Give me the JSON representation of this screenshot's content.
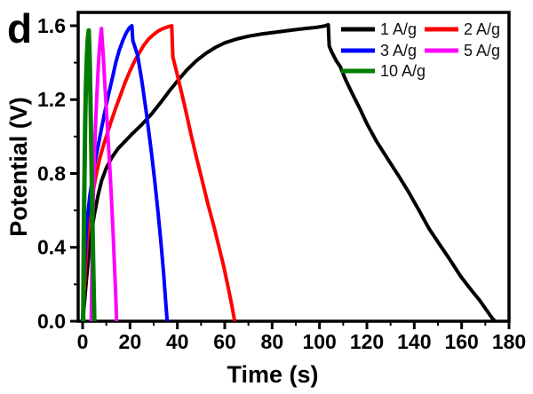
{
  "panel_label": "d",
  "chart_data": {
    "type": "line",
    "title": "",
    "xlabel": "Time (s)",
    "ylabel": "Potential (V)",
    "xlim": [
      -1.875,
      180
    ],
    "ylim": [
      0,
      1.672
    ],
    "grid": false,
    "legend_position": "top-right-inside",
    "x_major_ticks": [
      0,
      20,
      40,
      60,
      80,
      100,
      120,
      140,
      160,
      180
    ],
    "x_major_tick_labels": [
      "0",
      "20",
      "40",
      "60",
      "80",
      "100",
      "120",
      "140",
      "160",
      "180"
    ],
    "x_minor_ticks": [
      10,
      30,
      50,
      70,
      90,
      110,
      130,
      150,
      170
    ],
    "y_major_ticks": [
      0.0,
      0.4,
      0.8,
      1.2,
      1.6
    ],
    "y_major_tick_labels": [
      "0.0",
      "0.4",
      "0.8",
      "1.2",
      "1.6"
    ],
    "y_minor_ticks": [
      0.2,
      0.6,
      1.0,
      1.4
    ],
    "axis_color": "#000000",
    "series": [
      {
        "name": "1 A/g",
        "color": "#000000",
        "points": [
          [
            0,
            0
          ],
          [
            0.7,
            0.09
          ],
          [
            1.5,
            0.21
          ],
          [
            2.5,
            0.35
          ],
          [
            3.5,
            0.46
          ],
          [
            5,
            0.58
          ],
          [
            6.5,
            0.68
          ],
          [
            8,
            0.76
          ],
          [
            10,
            0.83
          ],
          [
            12.5,
            0.89
          ],
          [
            15,
            0.935
          ],
          [
            17.6,
            0.97
          ],
          [
            21,
            1.015
          ],
          [
            25,
            1.065
          ],
          [
            29,
            1.12
          ],
          [
            33,
            1.185
          ],
          [
            36.5,
            1.245
          ],
          [
            40,
            1.3
          ],
          [
            44,
            1.36
          ],
          [
            48,
            1.41
          ],
          [
            52,
            1.45
          ],
          [
            56,
            1.482
          ],
          [
            60,
            1.507
          ],
          [
            65,
            1.528
          ],
          [
            70,
            1.543
          ],
          [
            76,
            1.556
          ],
          [
            82,
            1.566
          ],
          [
            88,
            1.576
          ],
          [
            94,
            1.585
          ],
          [
            99,
            1.592
          ],
          [
            102,
            1.598
          ],
          [
            103.7,
            1.605
          ],
          [
            104.1,
            1.49
          ],
          [
            105,
            1.462
          ],
          [
            107,
            1.412
          ],
          [
            108.8,
            1.378
          ],
          [
            111,
            1.308
          ],
          [
            114,
            1.228
          ],
          [
            117,
            1.152
          ],
          [
            120,
            1.07
          ],
          [
            124,
            0.975
          ],
          [
            129,
            0.875
          ],
          [
            133.5,
            0.785
          ],
          [
            137.6,
            0.7
          ],
          [
            142,
            0.6
          ],
          [
            146.3,
            0.5
          ],
          [
            151,
            0.41
          ],
          [
            155.2,
            0.33
          ],
          [
            159.5,
            0.245
          ],
          [
            164,
            0.17
          ],
          [
            167.5,
            0.115
          ],
          [
            170.5,
            0.06
          ],
          [
            173,
            0.015
          ],
          [
            174.2,
            0
          ]
        ]
      },
      {
        "name": "2 A/g",
        "color": "#ff0000",
        "points": [
          [
            0,
            0
          ],
          [
            0.5,
            0.12
          ],
          [
            1.2,
            0.29
          ],
          [
            2,
            0.44
          ],
          [
            3,
            0.57
          ],
          [
            4,
            0.67
          ],
          [
            5.5,
            0.78
          ],
          [
            7,
            0.87
          ],
          [
            8.5,
            0.94
          ],
          [
            10,
            1.0
          ],
          [
            12,
            1.08
          ],
          [
            14,
            1.155
          ],
          [
            16,
            1.225
          ],
          [
            18,
            1.295
          ],
          [
            20,
            1.355
          ],
          [
            22,
            1.41
          ],
          [
            24,
            1.455
          ],
          [
            26,
            1.497
          ],
          [
            28,
            1.53
          ],
          [
            30,
            1.553
          ],
          [
            32,
            1.572
          ],
          [
            34,
            1.585
          ],
          [
            36,
            1.594
          ],
          [
            37.6,
            1.6
          ],
          [
            38.1,
            1.43
          ],
          [
            39.5,
            1.36
          ],
          [
            41,
            1.28
          ],
          [
            43,
            1.17
          ],
          [
            45.8,
            1.01
          ],
          [
            48,
            0.89
          ],
          [
            50.5,
            0.76
          ],
          [
            53,
            0.63
          ],
          [
            55.5,
            0.51
          ],
          [
            57.6,
            0.4
          ],
          [
            59.5,
            0.3
          ],
          [
            61.5,
            0.18
          ],
          [
            63,
            0.085
          ],
          [
            64.2,
            0
          ]
        ]
      },
      {
        "name": "3 A/g",
        "color": "#0000ff",
        "points": [
          [
            0,
            0
          ],
          [
            0.35,
            0.12
          ],
          [
            0.8,
            0.3
          ],
          [
            1.3,
            0.44
          ],
          [
            2,
            0.555
          ],
          [
            3,
            0.675
          ],
          [
            4,
            0.765
          ],
          [
            5,
            0.845
          ],
          [
            6.5,
            0.945
          ],
          [
            8,
            1.045
          ],
          [
            9.5,
            1.14
          ],
          [
            11,
            1.23
          ],
          [
            12.7,
            1.325
          ],
          [
            14,
            1.4
          ],
          [
            15.5,
            1.468
          ],
          [
            17,
            1.52
          ],
          [
            18.5,
            1.563
          ],
          [
            19.7,
            1.588
          ],
          [
            20.8,
            1.6
          ],
          [
            21.2,
            1.52
          ],
          [
            23.2,
            1.44
          ],
          [
            25,
            1.3
          ],
          [
            27,
            1.12
          ],
          [
            29,
            0.92
          ],
          [
            30.5,
            0.755
          ],
          [
            31.9,
            0.58
          ],
          [
            33,
            0.435
          ],
          [
            34.2,
            0.26
          ],
          [
            35.1,
            0.1
          ],
          [
            35.7,
            0
          ]
        ]
      },
      {
        "name": "5 A/g",
        "color": "#ff00ff",
        "points": [
          [
            3.6,
            0
          ],
          [
            3.9,
            0.25
          ],
          [
            4.2,
            0.5
          ],
          [
            4.6,
            0.72
          ],
          [
            5.0,
            0.9
          ],
          [
            5.5,
            1.08
          ],
          [
            6.0,
            1.22
          ],
          [
            6.5,
            1.35
          ],
          [
            7.0,
            1.46
          ],
          [
            7.5,
            1.535
          ],
          [
            7.95,
            1.585
          ],
          [
            8.3,
            1.52
          ],
          [
            8.8,
            1.42
          ],
          [
            9.3,
            1.3
          ],
          [
            10,
            1.15
          ],
          [
            10.7,
            1.0
          ],
          [
            11.4,
            0.85
          ],
          [
            12.1,
            0.68
          ],
          [
            12.8,
            0.5
          ],
          [
            13.4,
            0.32
          ],
          [
            13.95,
            0.15
          ],
          [
            14.35,
            0
          ]
        ]
      },
      {
        "name": "10 A/g",
        "color": "#007d00",
        "points": [
          [
            0.25,
            0
          ],
          [
            0.4,
            0.3
          ],
          [
            0.6,
            0.6
          ],
          [
            0.85,
            0.85
          ],
          [
            1.1,
            1.08
          ],
          [
            1.4,
            1.27
          ],
          [
            1.8,
            1.435
          ],
          [
            2.2,
            1.535
          ],
          [
            2.6,
            1.575
          ],
          [
            2.95,
            1.44
          ],
          [
            3.25,
            1.24
          ],
          [
            3.55,
            1.01
          ],
          [
            3.85,
            0.77
          ],
          [
            4.15,
            0.54
          ],
          [
            4.45,
            0.32
          ],
          [
            4.75,
            0.12
          ],
          [
            4.95,
            0
          ]
        ]
      }
    ]
  }
}
